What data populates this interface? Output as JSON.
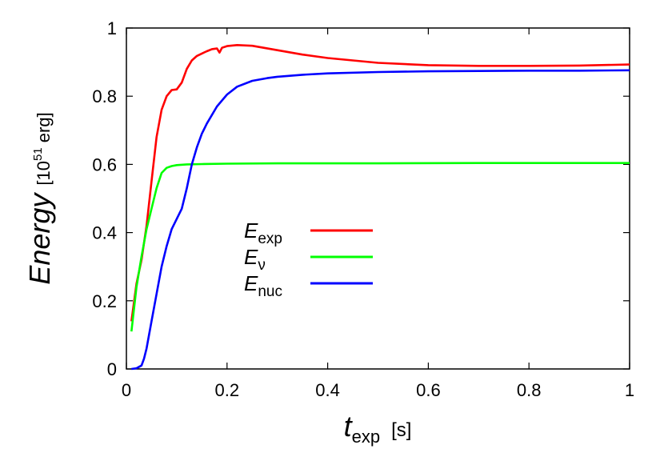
{
  "chart_data": {
    "type": "line",
    "xlabel": {
      "main": "t",
      "sub": "exp",
      "unit": "[s]"
    },
    "ylabel": {
      "main": "Energy",
      "unit_prefix": "[10",
      "unit_sup": "51",
      "unit_suffix": " erg]"
    },
    "xlim": [
      0,
      1
    ],
    "ylim": [
      0,
      1
    ],
    "xticks": [
      0,
      0.2,
      0.4,
      0.6,
      0.8,
      1
    ],
    "xtick_labels": [
      "0",
      "0.2",
      "0.4",
      "0.6",
      "0.8",
      "1"
    ],
    "yticks": [
      0,
      0.2,
      0.4,
      0.6,
      0.8,
      1
    ],
    "ytick_labels": [
      "0",
      "0.2",
      "0.4",
      "0.6",
      "0.8",
      "1"
    ],
    "grid": false,
    "legend_position": "center-left",
    "series": [
      {
        "name": "E",
        "sub": "exp",
        "color": "#ff0000",
        "x": [
          0.01,
          0.02,
          0.03,
          0.04,
          0.05,
          0.06,
          0.07,
          0.08,
          0.09,
          0.1,
          0.11,
          0.12,
          0.13,
          0.14,
          0.15,
          0.16,
          0.17,
          0.18,
          0.185,
          0.19,
          0.2,
          0.22,
          0.25,
          0.3,
          0.35,
          0.4,
          0.5,
          0.6,
          0.7,
          0.8,
          0.9,
          1.0
        ],
        "y": [
          0.14,
          0.25,
          0.32,
          0.42,
          0.55,
          0.68,
          0.76,
          0.8,
          0.818,
          0.82,
          0.84,
          0.88,
          0.905,
          0.918,
          0.925,
          0.932,
          0.938,
          0.94,
          0.928,
          0.942,
          0.947,
          0.95,
          0.948,
          0.935,
          0.922,
          0.912,
          0.898,
          0.891,
          0.889,
          0.889,
          0.89,
          0.893
        ]
      },
      {
        "name": "E",
        "sub": "ν",
        "color": "#00ff00",
        "x": [
          0.01,
          0.02,
          0.03,
          0.04,
          0.05,
          0.06,
          0.07,
          0.08,
          0.09,
          0.1,
          0.12,
          0.15,
          0.2,
          0.3,
          0.5,
          0.7,
          0.9,
          1.0
        ],
        "y": [
          0.11,
          0.24,
          0.33,
          0.41,
          0.47,
          0.53,
          0.575,
          0.59,
          0.595,
          0.598,
          0.6,
          0.601,
          0.602,
          0.603,
          0.603,
          0.604,
          0.604,
          0.604
        ]
      },
      {
        "name": "E",
        "sub": "nuc",
        "color": "#0000ff",
        "x": [
          0.01,
          0.02,
          0.03,
          0.035,
          0.04,
          0.05,
          0.06,
          0.07,
          0.08,
          0.09,
          0.1,
          0.11,
          0.12,
          0.13,
          0.14,
          0.15,
          0.16,
          0.18,
          0.2,
          0.22,
          0.25,
          0.28,
          0.3,
          0.35,
          0.4,
          0.5,
          0.6,
          0.7,
          0.8,
          0.9,
          1.0
        ],
        "y": [
          0.0,
          0.002,
          0.01,
          0.03,
          0.06,
          0.14,
          0.22,
          0.3,
          0.36,
          0.41,
          0.44,
          0.47,
          0.53,
          0.6,
          0.65,
          0.69,
          0.72,
          0.77,
          0.805,
          0.828,
          0.845,
          0.853,
          0.857,
          0.863,
          0.867,
          0.871,
          0.873,
          0.874,
          0.875,
          0.875,
          0.876
        ]
      }
    ]
  }
}
